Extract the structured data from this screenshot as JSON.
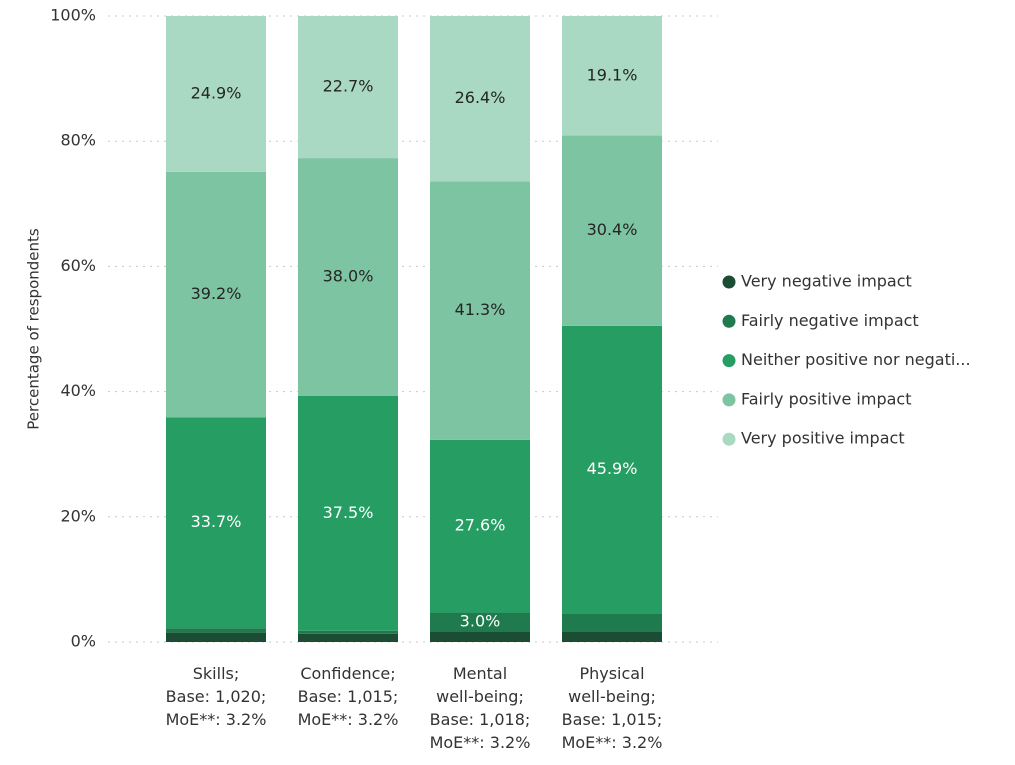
{
  "chart_data": {
    "type": "stacked_bar",
    "y_label": "Percentage of respondents",
    "categories": [
      [
        "Skills;",
        "Base: 1,020;",
        "MoE**: 3.2%"
      ],
      [
        "Confidence;",
        "Base: 1,015;",
        "MoE**: 3.2%"
      ],
      [
        "Mental",
        "well-being;",
        "Base: 1,018;",
        "MoE**: 3.2%"
      ],
      [
        "Physical",
        "well-being;",
        "Base: 1,015;",
        "MoE**: 3.2%"
      ]
    ],
    "series": [
      {
        "name": "Very negative impact",
        "color": "#1b4d34",
        "label_color": "#ffffff",
        "values": [
          1.5,
          1.3,
          1.7,
          1.6
        ],
        "value_labels": [
          null,
          null,
          null,
          null
        ]
      },
      {
        "name": "Fairly negative impact",
        "color": "#1f7a4e",
        "label_color": "#ffffff",
        "values": [
          0.7,
          0.5,
          3.0,
          3.0
        ],
        "value_labels": [
          null,
          null,
          "3.0%",
          null
        ]
      },
      {
        "name": "Neither positive nor negati...",
        "color": "#269d63",
        "label_color": "#ffffff",
        "values": [
          33.7,
          37.5,
          27.6,
          45.9
        ],
        "value_labels": [
          "33.7%",
          "37.5%",
          "27.6%",
          "45.9%"
        ]
      },
      {
        "name": "Fairly positive impact",
        "color": "#7dc4a2",
        "label_color": "#252525",
        "values": [
          39.2,
          38.0,
          41.3,
          30.4
        ],
        "value_labels": [
          "39.2%",
          "38.0%",
          "41.3%",
          "30.4%"
        ]
      },
      {
        "name": "Very positive impact",
        "color": "#a9d9c2",
        "label_color": "#252525",
        "values": [
          24.9,
          22.7,
          26.4,
          19.1
        ],
        "value_labels": [
          "24.9%",
          "22.7%",
          "26.4%",
          "19.1%"
        ]
      }
    ],
    "ylim": [
      0,
      100
    ],
    "yticks": [
      {
        "value": 0,
        "label": "0%"
      },
      {
        "value": 20,
        "label": "20%"
      },
      {
        "value": 40,
        "label": "40%"
      },
      {
        "value": 60,
        "label": "60%"
      },
      {
        "value": 80,
        "label": "80%"
      },
      {
        "value": 100,
        "label": "100%"
      }
    ],
    "grid": true,
    "legend": "right"
  }
}
